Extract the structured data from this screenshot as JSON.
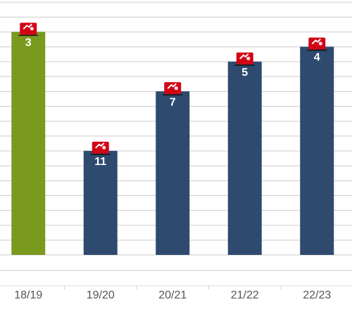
{
  "chart_data": {
    "type": "bar",
    "categories": [
      "18/19",
      "19/20",
      "20/21",
      "21/22",
      "22/23"
    ],
    "values": [
      3,
      11,
      7,
      5,
      4
    ],
    "colors": [
      "#7a9a1f",
      "#2f4a6f",
      "#2f4a6f",
      "#2f4a6f",
      "#2f4a6f"
    ],
    "ylim": [
      18,
      1
    ],
    "grid": true
  }
}
